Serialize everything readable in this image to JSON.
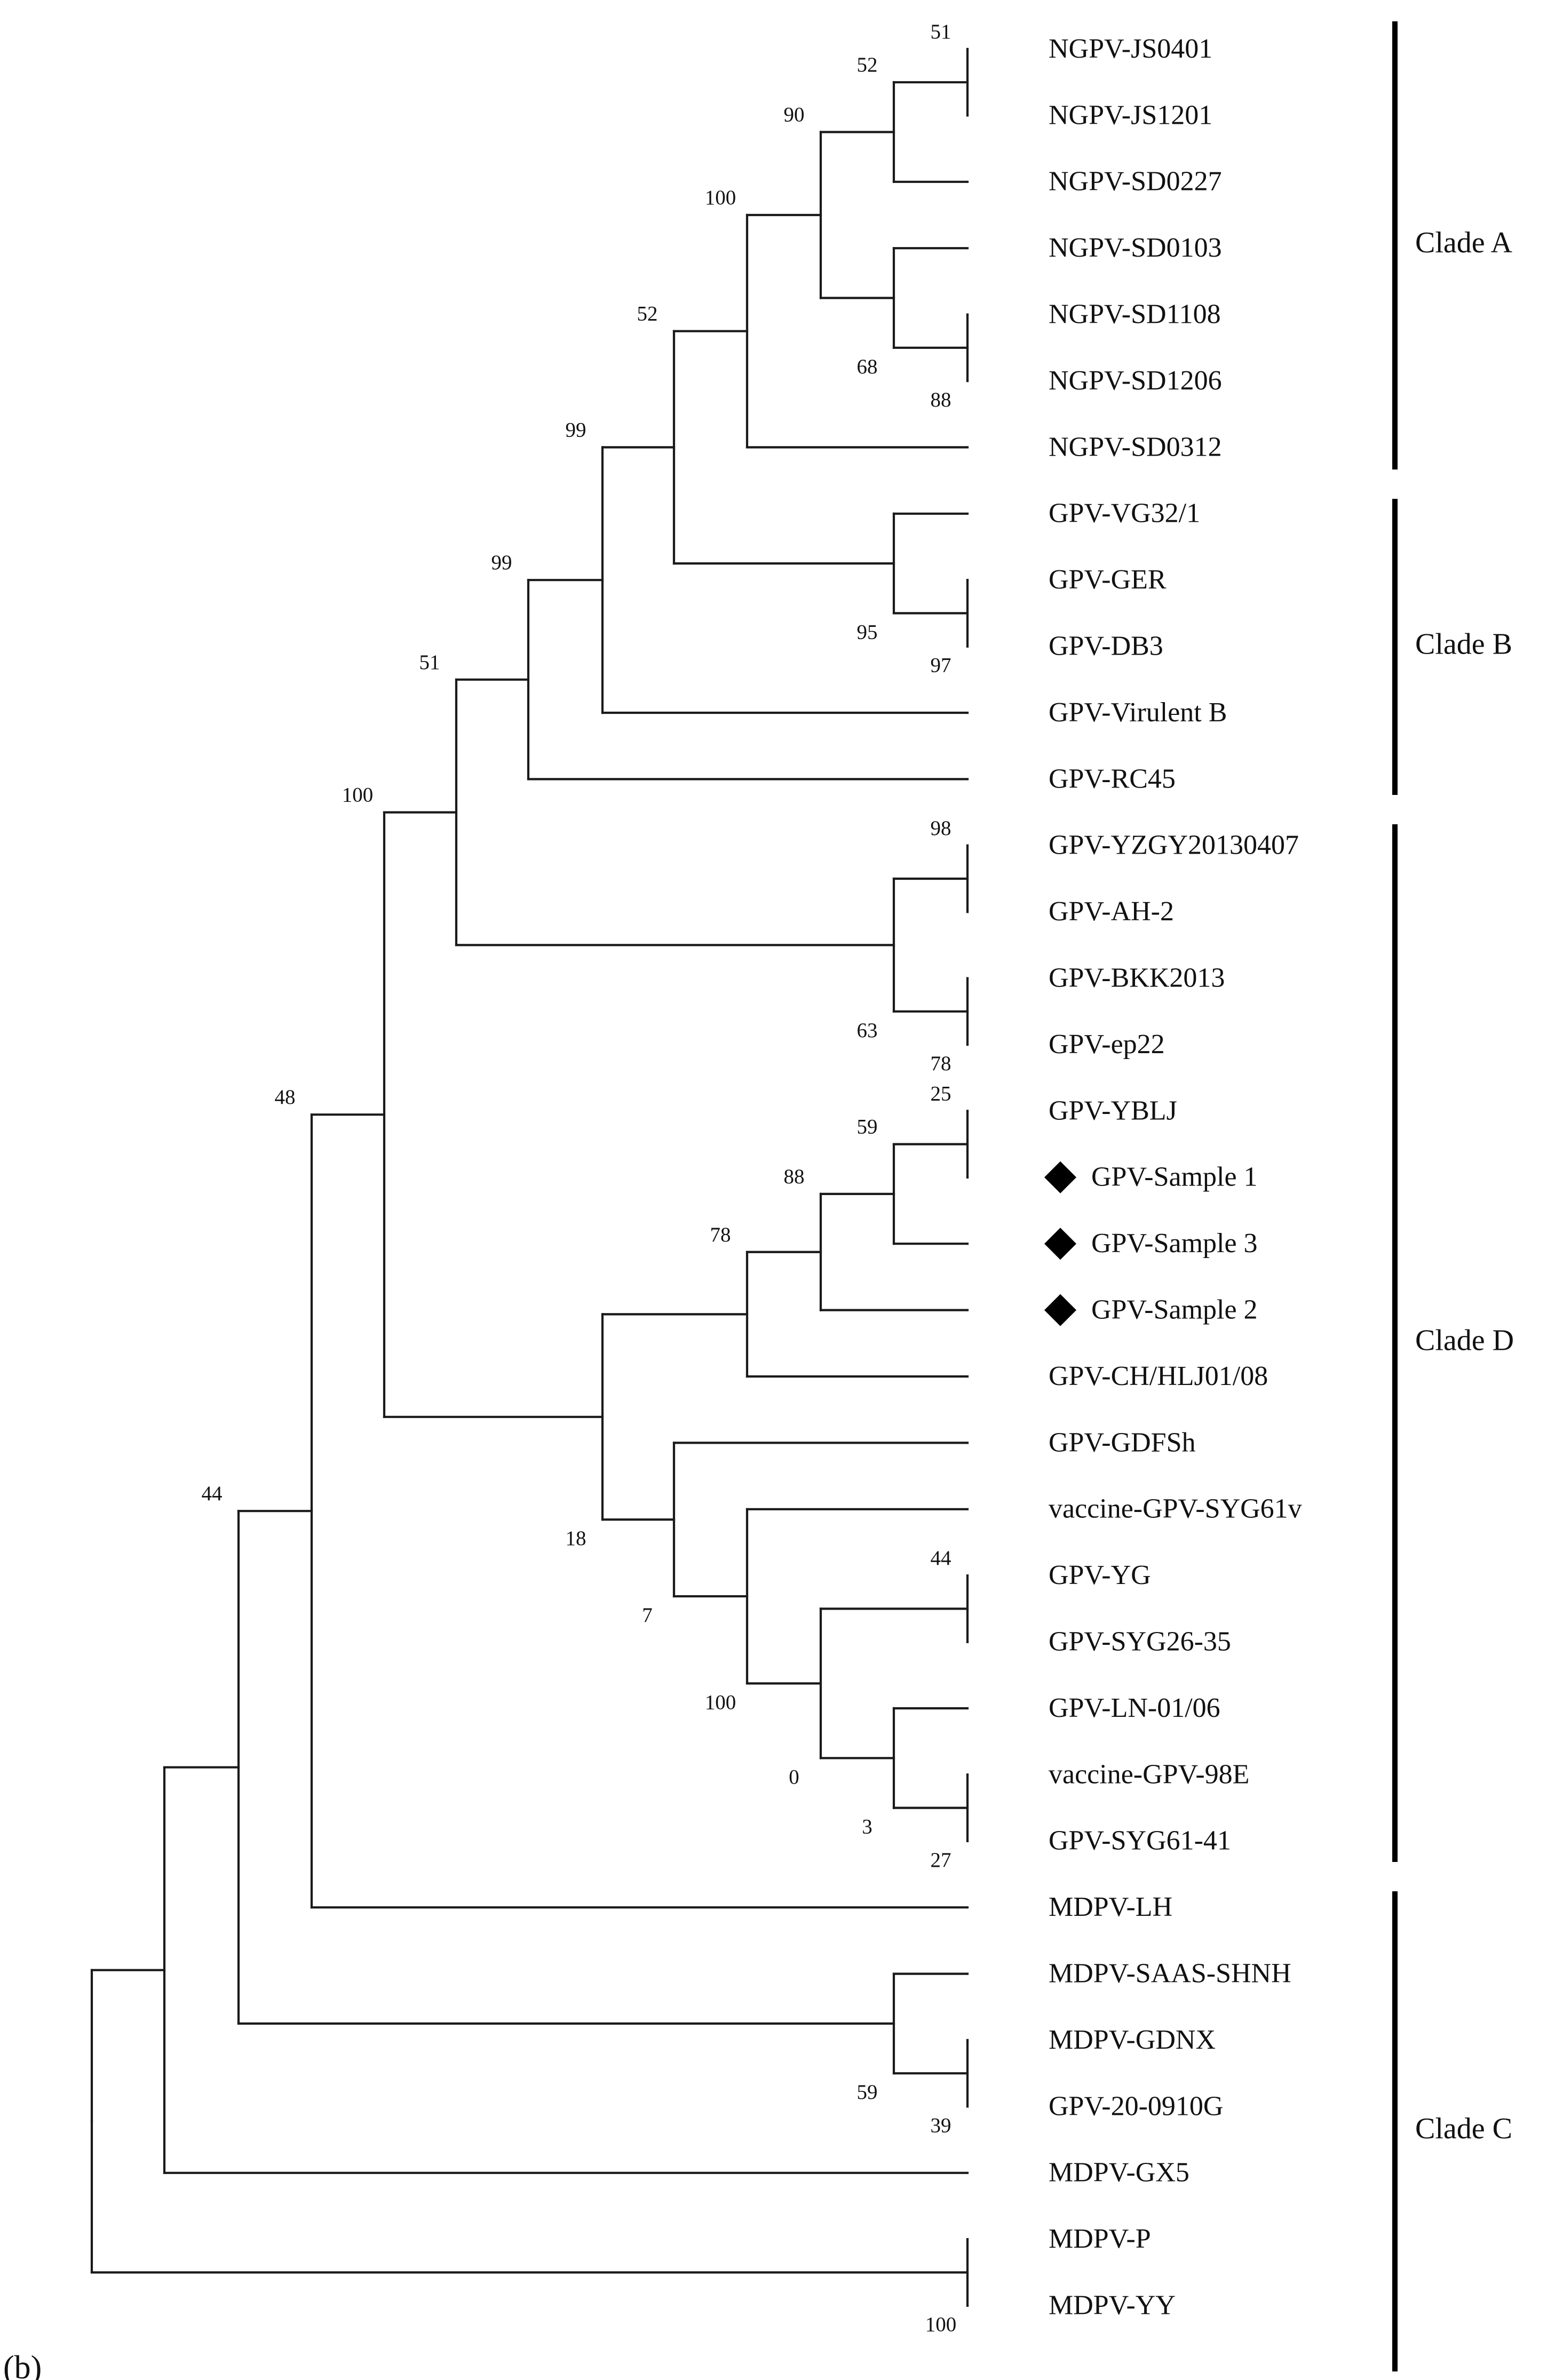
{
  "figure": {
    "panel_label": "(b)",
    "marker_shape": "filled-diamond",
    "taxa": [
      {
        "id": "t1",
        "name": "NGPV-JS0401"
      },
      {
        "id": "t2",
        "name": "NGPV-JS1201"
      },
      {
        "id": "t3",
        "name": "NGPV-SD0227"
      },
      {
        "id": "t4",
        "name": "NGPV-SD0103"
      },
      {
        "id": "t5",
        "name": "NGPV-SD1108"
      },
      {
        "id": "t6",
        "name": "NGPV-SD1206"
      },
      {
        "id": "t7",
        "name": "NGPV-SD0312"
      },
      {
        "id": "t8",
        "name": "GPV-VG32/1"
      },
      {
        "id": "t9",
        "name": "GPV-GER"
      },
      {
        "id": "t10",
        "name": "GPV-DB3"
      },
      {
        "id": "t11",
        "name": "GPV-Virulent B"
      },
      {
        "id": "t12",
        "name": "GPV-RC45"
      },
      {
        "id": "t13",
        "name": "GPV-YZGY20130407"
      },
      {
        "id": "t14",
        "name": "GPV-AH-2"
      },
      {
        "id": "t15",
        "name": "GPV-BKK2013"
      },
      {
        "id": "t16",
        "name": "GPV-ep22"
      },
      {
        "id": "t17",
        "name": "GPV-YBLJ"
      },
      {
        "id": "t18",
        "name": "GPV-Sample 1",
        "marked": true
      },
      {
        "id": "t19",
        "name": "GPV-Sample 3",
        "marked": true
      },
      {
        "id": "t20",
        "name": "GPV-Sample 2",
        "marked": true
      },
      {
        "id": "t21",
        "name": "GPV-CH/HLJ01/08"
      },
      {
        "id": "t22",
        "name": "GPV-GDFSh"
      },
      {
        "id": "t23",
        "name": "vaccine-GPV-SYG61v"
      },
      {
        "id": "t24",
        "name": "GPV-YG"
      },
      {
        "id": "t25",
        "name": "GPV-SYG26-35"
      },
      {
        "id": "t26",
        "name": "GPV-LN-01/06"
      },
      {
        "id": "t27",
        "name": "vaccine-GPV-98E"
      },
      {
        "id": "t28",
        "name": "GPV-SYG61-41"
      },
      {
        "id": "t29",
        "name": "MDPV-LH"
      },
      {
        "id": "t30",
        "name": "MDPV-SAAS-SHNH"
      },
      {
        "id": "t31",
        "name": "MDPV-GDNX"
      },
      {
        "id": "t32",
        "name": "GPV-20-0910G"
      },
      {
        "id": "t33",
        "name": "MDPV-GX5"
      },
      {
        "id": "t34",
        "name": "MDPV-P"
      },
      {
        "id": "t35",
        "name": "MDPV-YY"
      }
    ],
    "bootstrap": [
      {
        "node": "n1",
        "value": "51"
      },
      {
        "node": "n2",
        "value": "52"
      },
      {
        "node": "n3",
        "value": "88"
      },
      {
        "node": "n4",
        "value": "68"
      },
      {
        "node": "n5",
        "value": "90"
      },
      {
        "node": "n6",
        "value": "100"
      },
      {
        "node": "n7",
        "value": "97"
      },
      {
        "node": "n8",
        "value": "95"
      },
      {
        "node": "n9",
        "value": "52"
      },
      {
        "node": "n10",
        "value": "99"
      },
      {
        "node": "n11",
        "value": "99"
      },
      {
        "node": "n12",
        "value": "98"
      },
      {
        "node": "n13",
        "value": "78"
      },
      {
        "node": "n14",
        "value": "63"
      },
      {
        "node": "n15",
        "value": "51"
      },
      {
        "node": "n16",
        "value": "25"
      },
      {
        "node": "n17",
        "value": "59"
      },
      {
        "node": "n18",
        "value": "88"
      },
      {
        "node": "n19",
        "value": "78"
      },
      {
        "node": "n20",
        "value": "44"
      },
      {
        "node": "n21",
        "value": "27"
      },
      {
        "node": "n22",
        "value": "3"
      },
      {
        "node": "n23",
        "value": "0"
      },
      {
        "node": "n24",
        "value": "100"
      },
      {
        "node": "n25",
        "value": "7"
      },
      {
        "node": "n26",
        "value": "18"
      },
      {
        "node": "n27",
        "value": "100"
      },
      {
        "node": "n28",
        "value": "39"
      },
      {
        "node": "n29",
        "value": "59"
      },
      {
        "node": "n30",
        "value": "48"
      },
      {
        "node": "n31",
        "value": "44"
      },
      {
        "node": "n32",
        "value": "100"
      }
    ],
    "clades": [
      {
        "id": "cA",
        "label": "Clade A"
      },
      {
        "id": "cB",
        "label": "Clade B"
      },
      {
        "id": "cD",
        "label": "Clade D"
      },
      {
        "id": "cC",
        "label": "Clade C"
      }
    ]
  }
}
